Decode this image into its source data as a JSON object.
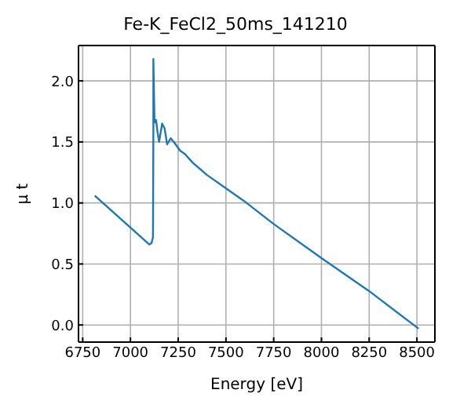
{
  "chart_data": {
    "type": "line",
    "title": "Fe-K_FeCl2_50ms_141210",
    "xlabel": "Energy [eV]",
    "ylabel": "μ t",
    "x": [
      6813,
      7099,
      7110,
      7118,
      7120,
      7120,
      7126,
      7134,
      7142,
      7150,
      7166,
      7179,
      7192,
      7211,
      7232,
      7259,
      7286,
      7326,
      7400,
      7500,
      7600,
      7748,
      7999,
      8248,
      8509
    ],
    "series": [
      {
        "color": "#1f77b4",
        "values": [
          1.06,
          0.66,
          0.67,
          0.72,
          1.6,
          2.18,
          1.66,
          1.68,
          1.58,
          1.5,
          1.65,
          1.61,
          1.48,
          1.53,
          1.49,
          1.43,
          1.4,
          1.33,
          1.23,
          1.12,
          1.01,
          0.83,
          0.55,
          0.28,
          -0.03
        ]
      }
    ],
    "xlim": [
      6728,
      8594
    ],
    "xticks": [
      6750,
      7000,
      7250,
      7500,
      7750,
      8000,
      8250,
      8500
    ],
    "ylim": [
      -0.14,
      2.29
    ],
    "yticks": [
      {
        "value": 0,
        "label": "0.0"
      },
      {
        "value": 0.5,
        "label": "0.5"
      },
      {
        "value": 1,
        "label": "1.0"
      },
      {
        "value": 1.5,
        "label": "1.5"
      },
      {
        "value": 2,
        "label": "2.0"
      }
    ],
    "grid": true,
    "marker": "none",
    "line_style": "solid"
  }
}
